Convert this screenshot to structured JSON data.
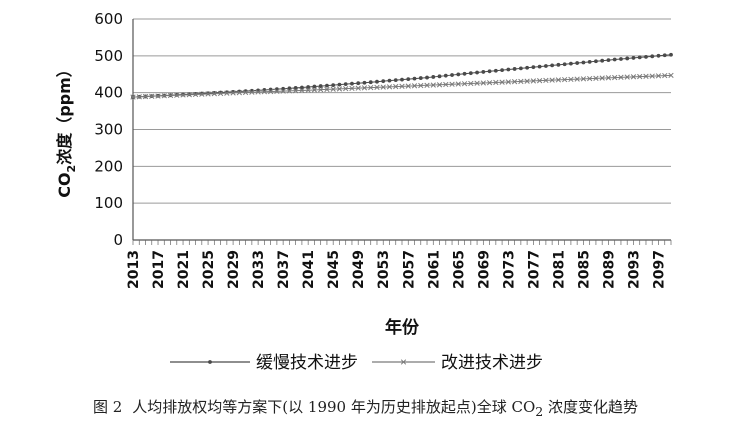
{
  "caption": {
    "figure_number": "图 2",
    "text_before": "人均排放权均等方案下(以 1990 年为历史排放起点)全球 CO",
    "subscript": "2",
    "text_after": " 浓度变化趋势"
  },
  "chart_data": {
    "type": "line",
    "xlabel": "年份",
    "ylabel": {
      "prefix": "CO",
      "subscript": "2",
      "suffix": "浓度（ppm）"
    },
    "ylim": [
      0,
      600
    ],
    "yticks": [
      0,
      100,
      200,
      300,
      400,
      500,
      600
    ],
    "x_range": [
      2013,
      2099
    ],
    "xtick_labels": [
      "2013",
      "2017",
      "2021",
      "2025",
      "2029",
      "2033",
      "2037",
      "2041",
      "2045",
      "2049",
      "2053",
      "2057",
      "2061",
      "2065",
      "2069",
      "2073",
      "2077",
      "2081",
      "2085",
      "2089",
      "2093",
      "2097"
    ],
    "grid": "horizontal",
    "legend_position": "bottom",
    "series": [
      {
        "name": "缓慢技术进步",
        "marker": "dot",
        "color": "#4a4a4a",
        "x": [
          2013,
          2020,
          2030,
          2040,
          2050,
          2060,
          2070,
          2080,
          2090,
          2099
        ],
        "y": [
          388,
          394,
          403,
          414,
          427,
          441,
          458,
          474,
          490,
          503
        ]
      },
      {
        "name": "改进技术进步",
        "marker": "x",
        "color": "#7a7a7a",
        "x": [
          2013,
          2020,
          2030,
          2040,
          2050,
          2060,
          2070,
          2080,
          2090,
          2099
        ],
        "y": [
          388,
          393,
          400,
          406,
          413,
          420,
          427,
          434,
          441,
          447
        ]
      }
    ]
  }
}
